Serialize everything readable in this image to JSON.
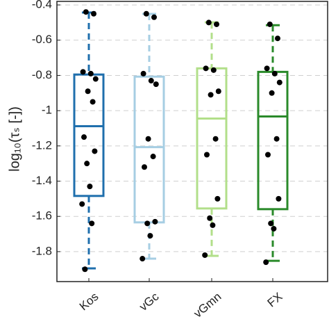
{
  "chart_data": {
    "type": "box",
    "ylabel": "log₁₀(τₛ [-])",
    "categories": [
      "Kos",
      "vGc",
      "vGmn",
      "FX"
    ],
    "ylim": [
      -1.97,
      -0.38
    ],
    "yticks": [
      -0.4,
      -0.6,
      -0.8,
      -1,
      -1.2,
      -1.4,
      -1.6,
      -1.8
    ],
    "grid": true,
    "series": [
      {
        "name": "Kos",
        "color": "#1f6fad",
        "whislo": -1.895,
        "q1": -1.484,
        "med": -1.088,
        "q3": -0.795,
        "whishi": -0.443,
        "points": [
          -0.44,
          -0.45,
          -0.78,
          -0.79,
          -0.82,
          -0.89,
          -0.95,
          -1.15,
          -1.23,
          -1.3,
          -1.43,
          -1.53,
          -1.64,
          -1.9
        ]
      },
      {
        "name": "vGc",
        "color": "#a6cee3",
        "whislo": -1.84,
        "q1": -1.634,
        "med": -1.207,
        "q3": -0.807,
        "whishi": -0.451,
        "points": [
          -0.45,
          -0.47,
          -0.79,
          -0.83,
          -0.85,
          -1.16,
          -1.26,
          -1.32,
          -1.63,
          -1.64,
          -1.71,
          -1.84
        ]
      },
      {
        "name": "vGmn",
        "color": "#b2df8a",
        "whislo": -1.824,
        "q1": -1.555,
        "med": -1.045,
        "q3": -0.76,
        "whishi": -0.499,
        "points": [
          -0.5,
          -0.51,
          -0.76,
          -0.77,
          -0.89,
          -0.91,
          -1.16,
          -1.25,
          -1.5,
          -1.61,
          -1.65,
          -1.82
        ]
      },
      {
        "name": "FX",
        "color": "#2a8a2a",
        "whislo": -1.852,
        "q1": -1.559,
        "med": -1.033,
        "q3": -0.78,
        "whishi": -0.515,
        "points": [
          -0.51,
          -0.59,
          -0.76,
          -0.79,
          -0.84,
          -0.9,
          -1.16,
          -1.25,
          -1.5,
          -1.64,
          -1.67,
          -1.86
        ]
      }
    ]
  }
}
